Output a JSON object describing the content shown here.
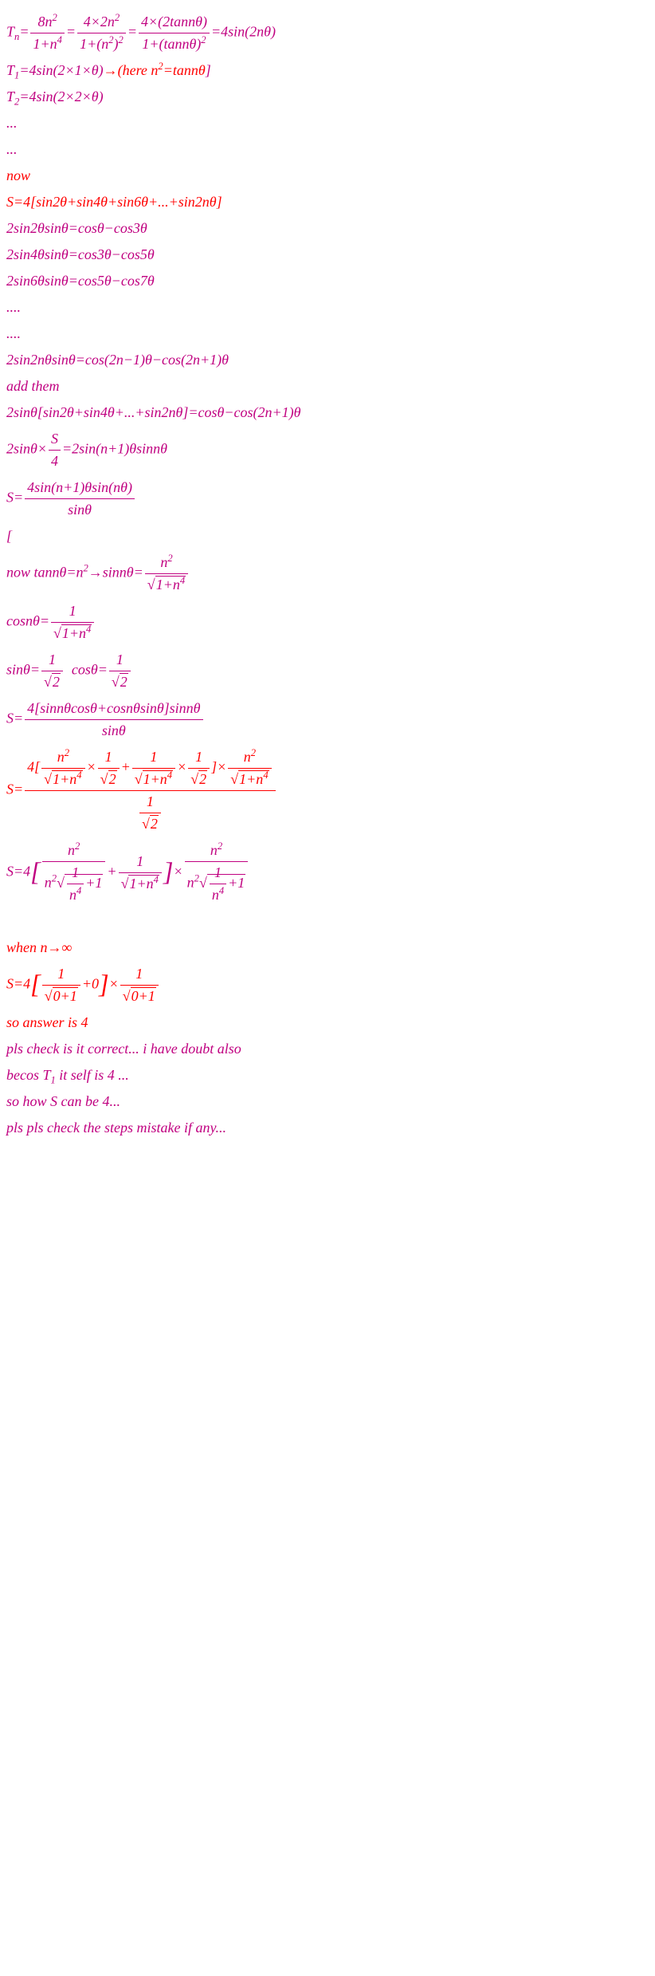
{
  "lines": [
    {
      "cls": "purple",
      "html": "T<sub>n</sub>=<span class='frac'><span class='num'>8n<sup>2</sup></span><span class='den'>1+n<sup>4</sup></span></span>=<span class='frac'><span class='num'>4×2n<sup>2</sup></span><span class='den'>1+(n<sup>2</sup>)<sup>2</sup></span></span>=<span class='frac'><span class='num'>4×(2tannθ)</span><span class='den'>1+(tannθ)<sup>2</sup></span></span>=4sin(2nθ)"
    },
    {
      "cls": "purple",
      "html": "T<sub>1</sub>=4sin(2×1×θ)<span class='red'>→(here n<sup>2</sup>=tannθ</span>]"
    },
    {
      "cls": "purple",
      "html": "T<sub>2</sub>=4sin(2×2×θ)"
    },
    {
      "cls": "purple",
      "html": "..."
    },
    {
      "cls": "purple",
      "html": "..."
    },
    {
      "cls": "red",
      "html": "now"
    },
    {
      "cls": "red",
      "html": "S=4[sin2θ+sin4θ+sin6θ+...+sin2nθ]"
    },
    {
      "cls": "purple",
      "html": "2sin2θsinθ=cosθ−cos3θ"
    },
    {
      "cls": "purple",
      "html": "2sin4θsinθ=cos3θ−cos5θ"
    },
    {
      "cls": "purple",
      "html": "2sin6θsinθ=cos5θ−cos7θ"
    },
    {
      "cls": "purple",
      "html": "...."
    },
    {
      "cls": "purple",
      "html": "...."
    },
    {
      "cls": "purple",
      "html": "2sin2nθsinθ=cos(2n−1)θ−cos(2n+1)θ"
    },
    {
      "cls": "purple",
      "html": "add them"
    },
    {
      "cls": "purple",
      "html": "2sinθ[sin2θ+sin4θ+...+sin2nθ]=cosθ−cos(2n+1)θ"
    },
    {
      "cls": "purple",
      "html": "2sinθ×<span class='frac'><span class='num'>S</span><span class='den'>4</span></span>=2sin(n+1)θsinnθ"
    },
    {
      "cls": "purple",
      "html": "S=<span class='frac'><span class='num'>4sin(n+1)θsin(nθ)</span><span class='den'>sinθ</span></span>"
    },
    {
      "cls": "purple",
      "html": "["
    },
    {
      "cls": "purple",
      "html": "now tannθ=n<sup>2</sup>→sinnθ=<span class='frac'><span class='num'>n<sup>2</sup></span><span class='den'><span class='sqrt'><span class='rad'>1+n<sup>4</sup></span></span></span></span>"
    },
    {
      "cls": "purple",
      "html": "cosnθ=<span class='frac'><span class='num'>1</span><span class='den'><span class='sqrt'><span class='rad'>1+n<sup>4</sup></span></span></span></span>"
    },
    {
      "cls": "purple",
      "html": "sinθ=<span class='frac'><span class='num'>1</span><span class='den'><span class='sqrt'><span class='rad'>2</span></span></span></span>&nbsp; cosθ=<span class='frac'><span class='num'>1</span><span class='den'><span class='sqrt'><span class='rad'>2</span></span></span></span>"
    },
    {
      "cls": "purple",
      "html": "S=<span class='frac'><span class='num'>4[sinnθcosθ+cosnθsinθ]sinnθ</span><span class='den'>sinθ</span></span>"
    },
    {
      "cls": "red",
      "html": "S=<span class='frac'><span class='num'>4[<span class='frac'><span class='num'>n<sup>2</sup></span><span class='den'><span class='sqrt'><span class='rad'>1+n<sup>4</sup></span></span></span></span>×<span class='frac'><span class='num'>1</span><span class='den'><span class='sqrt'><span class='rad'>2</span></span></span></span>+<span class='frac'><span class='num'>1</span><span class='den'><span class='sqrt'><span class='rad'>1+n<sup>4</sup></span></span></span></span>×<span class='frac'><span class='num'>1</span><span class='den'><span class='sqrt'><span class='rad'>2</span></span></span></span>]×<span class='frac'><span class='num'>n<sup>2</sup></span><span class='den'><span class='sqrt'><span class='rad'>1+n<sup>4</sup></span></span></span></span></span><span class='den'><span class='frac'><span class='num'>1</span><span class='den'><span class='sqrt'><span class='rad'>2</span></span></span></span></span></span>"
    },
    {
      "cls": "purple",
      "html": "S=4<span class='bigbracket'>[</span><span class='frac'><span class='num'>n<sup>2</sup></span><span class='den'>n<sup>2</sup><span class='sqrt'><span class='rad'><span class='frac'><span class='num'>1</span><span class='den'>n<sup>4</sup></span></span>+1</span></span></span></span>+<span class='frac'><span class='num'>1</span><span class='den'><span class='sqrt'><span class='rad'>1+n<sup>4</sup></span></span></span></span><span class='bigbracket'>]</span>×<span class='frac'><span class='num'>n<sup>2</sup></span><span class='den'>n<sup>2</sup><span class='sqrt'><span class='rad'><span class='frac'><span class='num'>1</span><span class='den'>n<sup>4</sup></span></span>+1</span></span></span></span>"
    },
    {
      "cls": "purple",
      "html": "&nbsp;"
    },
    {
      "cls": "red",
      "html": "when n→∞"
    },
    {
      "cls": "red",
      "html": "S=4<span class='bigbracket'>[</span><span class='frac'><span class='num'>1</span><span class='den'><span class='sqrt'><span class='rad'>0+1</span></span></span></span>+0<span class='bigbracket'>]</span>×<span class='frac'><span class='num'>1</span><span class='den'><span class='sqrt'><span class='rad'>0+1</span></span></span></span>"
    },
    {
      "cls": "red",
      "html": "so answer is 4"
    },
    {
      "cls": "purple",
      "html": "pls check is it correct... i have doubt also"
    },
    {
      "cls": "purple",
      "html": "becos T<sub>1</sub> it self is 4 ..."
    },
    {
      "cls": "purple",
      "html": "so  how S can be 4..."
    },
    {
      "cls": "purple",
      "html": "pls pls check the steps mistake if any..."
    }
  ]
}
